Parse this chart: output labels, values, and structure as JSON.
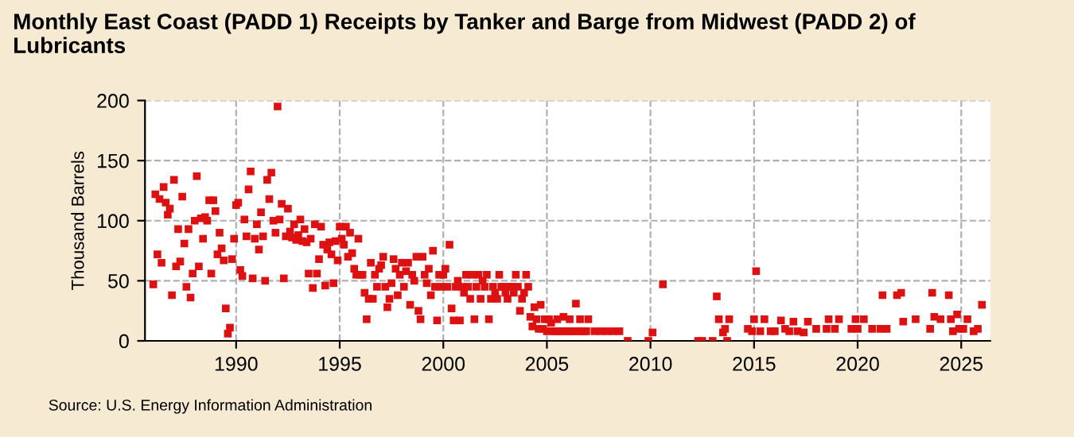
{
  "chart_data": {
    "type": "scatter",
    "title": "Monthly East Coast (PADD 1) Receipts by Tanker and Barge from Midwest (PADD 2) of\nLubricants",
    "ylabel": "Thousand Barrels",
    "annotations": [
      "Source: U.S. Energy Information Administration"
    ],
    "series": [
      {
        "color": "#dd1111",
        "marker": "square",
        "x": [
          1986.0,
          1986.1,
          1986.2,
          1986.3,
          1986.4,
          1986.5,
          1986.6,
          1986.7,
          1986.8,
          1986.9,
          1987.0,
          1987.1,
          1987.2,
          1987.3,
          1987.4,
          1987.5,
          1987.6,
          1987.7,
          1987.8,
          1987.9,
          1988.0,
          1988.1,
          1988.2,
          1988.3,
          1988.4,
          1988.5,
          1988.6,
          1988.7,
          1988.8,
          1988.9,
          1989.0,
          1989.1,
          1989.2,
          1989.3,
          1989.4,
          1989.5,
          1989.6,
          1989.7,
          1989.8,
          1989.9,
          1990.0,
          1990.1,
          1990.2,
          1990.3,
          1990.4,
          1990.5,
          1990.6,
          1990.7,
          1990.8,
          1990.9,
          1991.0,
          1991.1,
          1991.2,
          1991.3,
          1991.4,
          1991.5,
          1991.6,
          1991.7,
          1991.8,
          1991.9,
          1992.0,
          1992.1,
          1992.2,
          1992.3,
          1992.4,
          1992.5,
          1992.6,
          1992.7,
          1992.8,
          1992.9,
          1993.0,
          1993.1,
          1993.2,
          1993.3,
          1993.4,
          1993.5,
          1993.6,
          1993.7,
          1993.8,
          1993.9,
          1994.0,
          1994.1,
          1994.2,
          1994.3,
          1994.4,
          1994.5,
          1994.6,
          1994.7,
          1994.8,
          1994.9,
          1995.0,
          1995.1,
          1995.2,
          1995.3,
          1995.4,
          1995.5,
          1995.6,
          1995.7,
          1995.8,
          1995.9,
          1996.0,
          1996.1,
          1996.2,
          1996.3,
          1996.4,
          1996.5,
          1996.6,
          1996.7,
          1996.8,
          1996.9,
          1997.0,
          1997.1,
          1997.2,
          1997.3,
          1997.4,
          1997.5,
          1997.6,
          1997.7,
          1997.8,
          1997.9,
          1998.0,
          1998.1,
          1998.2,
          1998.3,
          1998.4,
          1998.5,
          1998.6,
          1998.7,
          1998.8,
          1998.9,
          1999.0,
          1999.1,
          1999.2,
          1999.3,
          1999.4,
          1999.5,
          1999.6,
          1999.7,
          1999.8,
          1999.9,
          2000.0,
          2000.1,
          2000.2,
          2000.3,
          2000.4,
          2000.5,
          2000.6,
          2000.7,
          2000.8,
          2000.9,
          2001.0,
          2001.1,
          2001.2,
          2001.3,
          2001.4,
          2001.5,
          2001.6,
          2001.7,
          2001.8,
          2001.9,
          2002.0,
          2002.1,
          2002.2,
          2002.3,
          2002.4,
          2002.5,
          2002.6,
          2002.7,
          2002.8,
          2002.9,
          2003.0,
          2003.1,
          2003.2,
          2003.3,
          2003.4,
          2003.5,
          2003.6,
          2003.7,
          2003.8,
          2003.9,
          2004.0,
          2004.1,
          2004.2,
          2004.3,
          2004.4,
          2004.5,
          2004.6,
          2004.7,
          2004.8,
          2004.9,
          2005.0,
          2005.1,
          2005.2,
          2005.3,
          2005.4,
          2005.5,
          2005.6,
          2005.7,
          2005.8,
          2005.9,
          2006.0,
          2006.1,
          2006.2,
          2006.3,
          2006.4,
          2006.5,
          2006.6,
          2006.7,
          2006.8,
          2006.9,
          2007.0,
          2007.3,
          2007.6,
          2007.9,
          2008.2,
          2008.5,
          2008.9,
          2009.9,
          2010.1,
          2010.6,
          2012.3,
          2012.5,
          2013.0,
          2013.2,
          2013.3,
          2013.5,
          2013.6,
          2013.7,
          2013.8,
          2014.7,
          2014.9,
          2015.0,
          2015.1,
          2015.3,
          2015.5,
          2015.8,
          2016.0,
          2016.3,
          2016.5,
          2016.7,
          2016.9,
          2017.1,
          2017.4,
          2017.6,
          2018.0,
          2018.5,
          2018.6,
          2018.9,
          2019.1,
          2019.7,
          2019.9,
          2020.0,
          2020.3,
          2020.7,
          2021.1,
          2021.2,
          2021.4,
          2021.9,
          2022.1,
          2022.2,
          2022.8,
          2023.5,
          2023.6,
          2023.7,
          2024.0,
          2024.4,
          2024.5,
          2024.6,
          2024.8,
          2024.9,
          2025.1,
          2025.3,
          2025.6,
          2025.8,
          2026.0
        ],
        "values": [
          47,
          122,
          72,
          118,
          65,
          128,
          115,
          105,
          110,
          38,
          134,
          62,
          93,
          66,
          120,
          81,
          45,
          93,
          36,
          56,
          100,
          137,
          62,
          102,
          85,
          103,
          100,
          117,
          56,
          117,
          108,
          72,
          90,
          77,
          67,
          27,
          6,
          11,
          68,
          85,
          113,
          115,
          59,
          54,
          101,
          87,
          126,
          141,
          52,
          85,
          97,
          76,
          107,
          87,
          50,
          134,
          118,
          140,
          100,
          90,
          195,
          101,
          114,
          52,
          87,
          110,
          91,
          86,
          97,
          84,
          88,
          101,
          83,
          93,
          82,
          56,
          85,
          44,
          97,
          56,
          68,
          95,
          80,
          46,
          76,
          82,
          72,
          48,
          83,
          67,
          95,
          85,
          80,
          95,
          70,
          90,
          73,
          60,
          55,
          85,
          55,
          55,
          40,
          18,
          35,
          65,
          35,
          55,
          45,
          60,
          63,
          70,
          45,
          28,
          35,
          48,
          68,
          60,
          38,
          55,
          65,
          45,
          58,
          65,
          30,
          55,
          50,
          70,
          25,
          18,
          70,
          55,
          48,
          60,
          38,
          75,
          45,
          17,
          55,
          45,
          55,
          60,
          45,
          80,
          27,
          17,
          45,
          50,
          17,
          45,
          40,
          55,
          45,
          35,
          55,
          18,
          45,
          55,
          35,
          50,
          45,
          55,
          18,
          35,
          45,
          40,
          35,
          55,
          45,
          45,
          40,
          35,
          45,
          45,
          40,
          55,
          45,
          25,
          35,
          40,
          55,
          45,
          20,
          12,
          28,
          18,
          10,
          30,
          10,
          18,
          8,
          18,
          15,
          8,
          8,
          18,
          8,
          8,
          20,
          8,
          8,
          18,
          8,
          8,
          31,
          8,
          18,
          8,
          8,
          8,
          18,
          8,
          8,
          8,
          8,
          8,
          0,
          0,
          7,
          47,
          0,
          0,
          0,
          37,
          18,
          7,
          10,
          0,
          18,
          10,
          8,
          18,
          58,
          8,
          18,
          8,
          8,
          17,
          10,
          8,
          16,
          8,
          7,
          16,
          10,
          10,
          18,
          10,
          18,
          10,
          18,
          10,
          18,
          10,
          10,
          38,
          10,
          38,
          40,
          16,
          18,
          10,
          40,
          20,
          18,
          38,
          18,
          8,
          22,
          10,
          10,
          18,
          8,
          10,
          30
        ]
      }
    ],
    "xlim": [
      1985.6,
      2026.4
    ],
    "xticks": [
      1990,
      1995,
      2000,
      2005,
      2010,
      2015,
      2020,
      2025
    ],
    "ylim": [
      0,
      200
    ],
    "yticks": [
      0,
      50,
      100,
      150,
      200
    ],
    "grid": true
  }
}
